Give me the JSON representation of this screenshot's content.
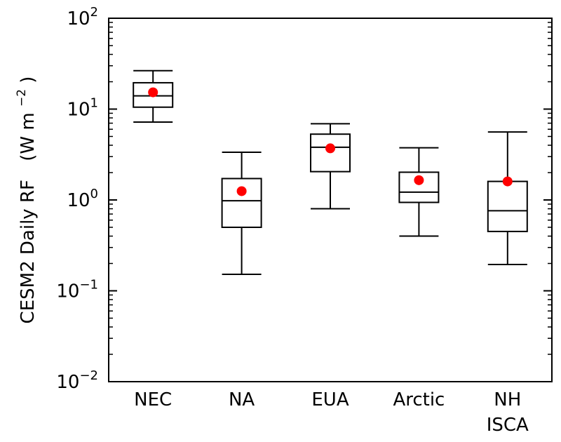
{
  "chart_data": {
    "type": "box",
    "ylabel": "CESM2 Daily RF",
    "yunit_base": "(W m",
    "yunit_exp": "−2",
    "yunit_close": ")",
    "yscale": "log",
    "ylim": [
      0.01,
      100
    ],
    "yticks": [
      {
        "value": 0.01,
        "base": "10",
        "exp": "−2"
      },
      {
        "value": 0.1,
        "base": "10",
        "exp": "−1"
      },
      {
        "value": 1,
        "base": "10",
        "exp": "0"
      },
      {
        "value": 10,
        "base": "10",
        "exp": "1"
      },
      {
        "value": 100,
        "base": "10",
        "exp": "2"
      }
    ],
    "categories": [
      "NEC",
      "NA",
      "EUA",
      "Arctic",
      "NH ISCA"
    ],
    "category_lines": [
      [
        "NEC"
      ],
      [
        "NA"
      ],
      [
        "EUA"
      ],
      [
        "Arctic"
      ],
      [
        "NH",
        "ISCA"
      ]
    ],
    "boxes": [
      {
        "whisker_low": 7.2,
        "q1": 10.5,
        "median": 14.0,
        "q3": 19.5,
        "whisker_high": 26.5,
        "mean": 15.3
      },
      {
        "whisker_low": 0.152,
        "q1": 0.5,
        "median": 0.98,
        "q3": 1.72,
        "whisker_high": 3.35,
        "mean": 1.25
      },
      {
        "whisker_low": 0.8,
        "q1": 2.05,
        "median": 3.8,
        "q3": 5.3,
        "whisker_high": 6.9,
        "mean": 3.7
      },
      {
        "whisker_low": 0.4,
        "q1": 0.94,
        "median": 1.22,
        "q3": 2.02,
        "whisker_high": 3.75,
        "mean": 1.65
      },
      {
        "whisker_low": 0.195,
        "q1": 0.45,
        "median": 0.76,
        "q3": 1.6,
        "whisker_high": 5.6,
        "mean": 1.6
      }
    ],
    "box_color": "#000000",
    "mean_color": "#ff0000",
    "grid": false
  }
}
